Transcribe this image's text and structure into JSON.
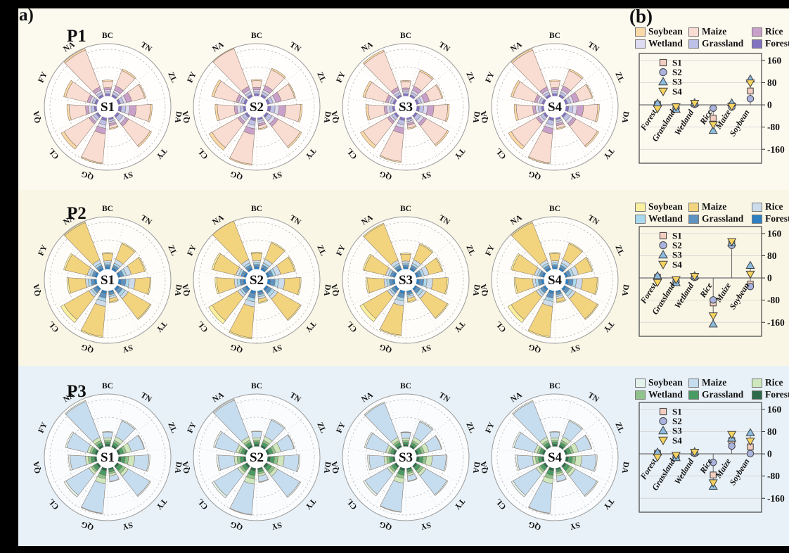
{
  "figure": {
    "panel_a_label": "a)",
    "panel_b_label": "(b)"
  },
  "stations": [
    "BC",
    "TN",
    "ZL",
    "DA",
    "TY",
    "SY",
    "QG",
    "CL",
    "QA",
    "FY",
    "NA"
  ],
  "legend_rows": [
    [
      "Soybean",
      "Maize",
      "Rice"
    ],
    [
      "Wetland",
      "Grassland",
      "Forest"
    ]
  ],
  "scenario_series": [
    {
      "name": "S1",
      "marker": "square",
      "fill": "#f3cdbf"
    },
    {
      "name": "S2",
      "marker": "circle",
      "fill": "#a9b3de"
    },
    {
      "name": "S3",
      "marker": "triangle-up",
      "fill": "#8cbcdf"
    },
    {
      "name": "S4",
      "marker": "triangle-down",
      "fill": "#f7d35f"
    }
  ],
  "rows": [
    {
      "id": "P1",
      "label": "P1",
      "bg": "#fcf9ef",
      "palette": {
        "Soybean": "#fbd9a6",
        "Maize": "#f9dcd2",
        "Rice": "#c9a0ca",
        "Wetland": "#dedcf2",
        "Grassland": "#bcc0e8",
        "Forest": "#8173bf"
      }
    },
    {
      "id": "P2",
      "label": "P2",
      "bg": "#faf6e6",
      "palette": {
        "Soybean": "#faf0a0",
        "Maize": "#f2d37e",
        "Rice": "#ccdcec",
        "Wetland": "#a8d8ee",
        "Grassland": "#5e92c0",
        "Forest": "#2e7fc1"
      }
    },
    {
      "id": "P3",
      "label": "P3",
      "bg": "#e8f1f7",
      "palette": {
        "Soybean": "#e4f2ec",
        "Maize": "#c6dcef",
        "Rice": "#cfe7bd",
        "Wetland": "#8fc38c",
        "Grassland": "#479c63",
        "Forest": "#2d6a4a"
      }
    }
  ],
  "chart_data": [
    {
      "type": "rose-multiples",
      "period": "P1",
      "scenarios": [
        "S1",
        "S2",
        "S3",
        "S4"
      ],
      "scenario_scale": [
        1,
        1.03,
        0.97,
        1
      ],
      "stations": [
        "BC",
        "TN",
        "ZL",
        "DA",
        "TY",
        "SY",
        "QG",
        "CL",
        "QA",
        "FY",
        "NA"
      ],
      "stack_order": [
        "Forest",
        "Grassland",
        "Wetland",
        "Rice",
        "Maize",
        "Soybean"
      ],
      "unit": "fraction of outer radius",
      "values": {
        "BC": [
          0.05,
          0.04,
          0.03,
          0.04,
          0.12,
          0.02
        ],
        "TN": [
          0.05,
          0.05,
          0.04,
          0.08,
          0.3,
          0.03
        ],
        "ZL": [
          0.05,
          0.06,
          0.05,
          0.1,
          0.24,
          0.02
        ],
        "DA": [
          0.06,
          0.08,
          0.07,
          0.12,
          0.26,
          0.03
        ],
        "TY": [
          0.05,
          0.08,
          0.06,
          0.06,
          0.45,
          0.03
        ],
        "SY": [
          0.04,
          0.04,
          0.03,
          0.04,
          0.05,
          0.02
        ],
        "QG": [
          0.06,
          0.08,
          0.06,
          0.1,
          0.53,
          0.02
        ],
        "CL": [
          0.05,
          0.06,
          0.04,
          0.05,
          0.52,
          0.06
        ],
        "QA": [
          0.05,
          0.06,
          0.05,
          0.05,
          0.3,
          0.04
        ],
        "FY": [
          0.05,
          0.05,
          0.04,
          0.05,
          0.4,
          0.04
        ],
        "NA": [
          0.05,
          0.05,
          0.04,
          0.06,
          0.72,
          0.03
        ]
      }
    },
    {
      "type": "scatter",
      "period": "P1",
      "categories": [
        "Forest",
        "Grassland",
        "Wetland",
        "Rice",
        "Maize",
        "Soybean"
      ],
      "yticks": [
        160,
        80,
        0,
        -80,
        -160
      ],
      "ylim": [
        -210,
        185
      ],
      "legend": [
        "S1",
        "S2",
        "S3",
        "S4"
      ],
      "series": [
        {
          "name": "S1",
          "values": [
            2,
            -6,
            4,
            -48,
            -3,
            50
          ]
        },
        {
          "name": "S2",
          "values": [
            0,
            -12,
            2,
            -12,
            -8,
            22
          ]
        },
        {
          "name": "S3",
          "values": [
            6,
            -16,
            8,
            -92,
            7,
            93
          ]
        },
        {
          "name": "S4",
          "values": [
            -14,
            -7,
            6,
            -71,
            -6,
            79
          ]
        }
      ]
    },
    {
      "type": "rose-multiples",
      "period": "P2",
      "scenarios": [
        "S1",
        "S2",
        "S3",
        "S4"
      ],
      "scenario_scale": [
        1,
        1.03,
        0.97,
        1
      ],
      "stations": [
        "BC",
        "TN",
        "ZL",
        "DA",
        "TY",
        "SY",
        "QG",
        "CL",
        "QA",
        "FY",
        "NA"
      ],
      "stack_order": [
        "Forest",
        "Grassland",
        "Wetland",
        "Rice",
        "Maize",
        "Soybean"
      ],
      "unit": "fraction of outer radius",
      "values": {
        "BC": [
          0.05,
          0.04,
          0.03,
          0.04,
          0.13,
          0.02
        ],
        "TN": [
          0.05,
          0.05,
          0.04,
          0.07,
          0.31,
          0.02
        ],
        "ZL": [
          0.05,
          0.06,
          0.05,
          0.09,
          0.25,
          0.02
        ],
        "DA": [
          0.06,
          0.08,
          0.06,
          0.11,
          0.27,
          0.02
        ],
        "TY": [
          0.05,
          0.07,
          0.06,
          0.06,
          0.46,
          0.02
        ],
        "SY": [
          0.04,
          0.04,
          0.03,
          0.04,
          0.06,
          0.02
        ],
        "QG": [
          0.06,
          0.08,
          0.06,
          0.09,
          0.55,
          0.02
        ],
        "CL": [
          0.05,
          0.06,
          0.04,
          0.05,
          0.52,
          0.07
        ],
        "QA": [
          0.05,
          0.06,
          0.05,
          0.05,
          0.31,
          0.03
        ],
        "FY": [
          0.05,
          0.05,
          0.04,
          0.05,
          0.41,
          0.03
        ],
        "NA": [
          0.05,
          0.05,
          0.04,
          0.06,
          0.73,
          0.02
        ]
      }
    },
    {
      "type": "scatter",
      "period": "P2",
      "categories": [
        "Forest",
        "Grassland",
        "Wetland",
        "Rice",
        "Maize",
        "Soybean"
      ],
      "yticks": [
        160,
        80,
        0,
        -80,
        -160
      ],
      "ylim": [
        -210,
        185
      ],
      "legend": [
        "S1",
        "S2",
        "S3",
        "S4"
      ],
      "series": [
        {
          "name": "S1",
          "values": [
            3,
            -9,
            4,
            -90,
            123,
            -22
          ]
        },
        {
          "name": "S2",
          "values": [
            0,
            -13,
            2,
            -79,
            117,
            -31
          ]
        },
        {
          "name": "S3",
          "values": [
            8,
            -17,
            8,
            -166,
            126,
            45
          ]
        },
        {
          "name": "S4",
          "values": [
            -16,
            -6,
            6,
            -136,
            131,
            14
          ]
        }
      ]
    },
    {
      "type": "rose-multiples",
      "period": "P3",
      "scenarios": [
        "S1",
        "S2",
        "S3",
        "S4"
      ],
      "scenario_scale": [
        1,
        1.03,
        0.97,
        1
      ],
      "stations": [
        "BC",
        "TN",
        "ZL",
        "DA",
        "TY",
        "SY",
        "QG",
        "CL",
        "QA",
        "FY",
        "NA"
      ],
      "stack_order": [
        "Forest",
        "Grassland",
        "Wetland",
        "Rice",
        "Maize",
        "Soybean"
      ],
      "unit": "fraction of outer radius",
      "values": {
        "BC": [
          0.05,
          0.04,
          0.03,
          0.04,
          0.11,
          0.01
        ],
        "TN": [
          0.05,
          0.05,
          0.04,
          0.07,
          0.31,
          0.02
        ],
        "ZL": [
          0.05,
          0.06,
          0.05,
          0.09,
          0.24,
          0.01
        ],
        "DA": [
          0.06,
          0.07,
          0.06,
          0.11,
          0.26,
          0.02
        ],
        "TY": [
          0.05,
          0.07,
          0.06,
          0.06,
          0.45,
          0.02
        ],
        "SY": [
          0.04,
          0.04,
          0.03,
          0.04,
          0.1,
          0.01
        ],
        "QG": [
          0.06,
          0.08,
          0.06,
          0.09,
          0.54,
          0.01
        ],
        "CL": [
          0.05,
          0.06,
          0.04,
          0.05,
          0.48,
          0.04
        ],
        "QA": [
          0.05,
          0.06,
          0.05,
          0.05,
          0.28,
          0.03
        ],
        "FY": [
          0.05,
          0.05,
          0.04,
          0.05,
          0.38,
          0.03
        ],
        "NA": [
          0.05,
          0.05,
          0.04,
          0.06,
          0.7,
          0.02
        ]
      }
    },
    {
      "type": "scatter",
      "period": "P3",
      "categories": [
        "Forest",
        "Grassland",
        "Wetland",
        "Rice",
        "Maize",
        "Soybean"
      ],
      "yticks": [
        160,
        80,
        0,
        -80,
        -160
      ],
      "ylim": [
        -210,
        185
      ],
      "legend": [
        "S1",
        "S2",
        "S3",
        "S4"
      ],
      "series": [
        {
          "name": "S1",
          "values": [
            2,
            -8,
            4,
            -76,
            48,
            25
          ]
        },
        {
          "name": "S2",
          "values": [
            0,
            -12,
            2,
            -31,
            28,
            1
          ]
        },
        {
          "name": "S3",
          "values": [
            6,
            -14,
            8,
            -117,
            56,
            76
          ]
        },
        {
          "name": "S4",
          "values": [
            -12,
            -5,
            6,
            -104,
            70,
            46
          ]
        }
      ]
    }
  ]
}
